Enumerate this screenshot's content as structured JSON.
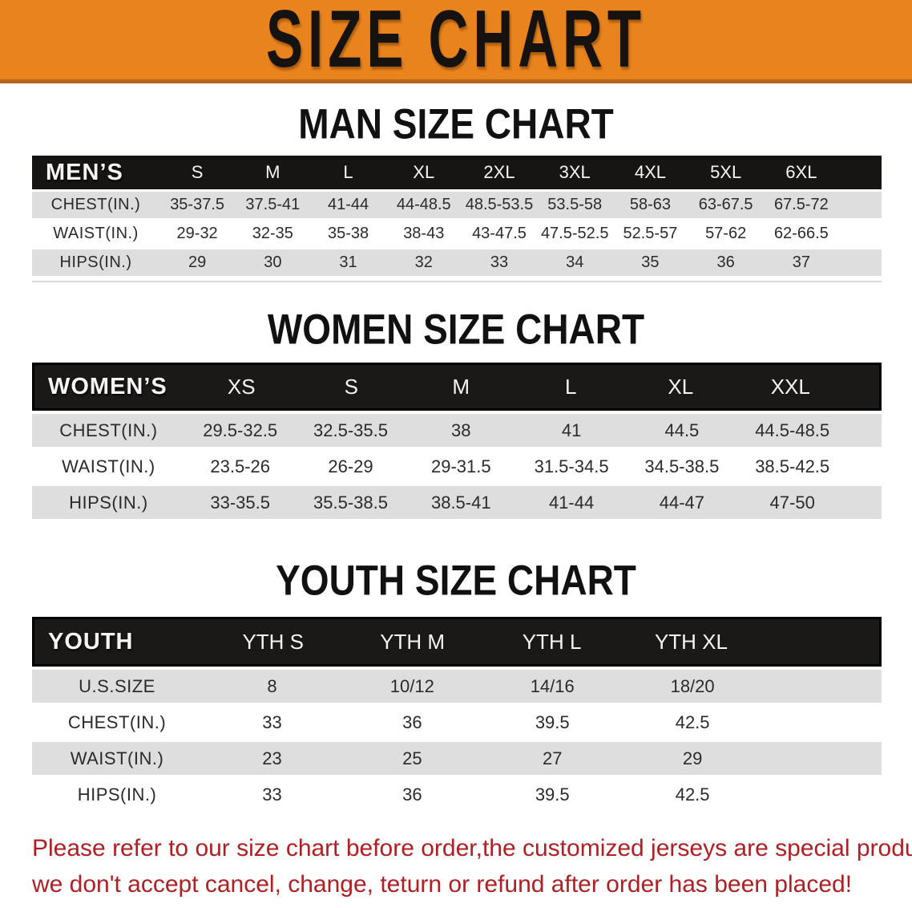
{
  "banner": {
    "title": "SIZE CHART"
  },
  "sections": [
    {
      "heading": "MAN SIZE CHART",
      "table": {
        "header_label": "MEN’S",
        "columns": [
          "S",
          "M",
          "L",
          "XL",
          "2XL",
          "3XL",
          "4XL",
          "5XL",
          "6XL"
        ],
        "rows": [
          {
            "label": "CHEST(IN.)",
            "values": [
              "35-37.5",
              "37.5-41",
              "41-44",
              "44-48.5",
              "48.5-53.5",
              "53.5-58",
              "58-63",
              "63-67.5",
              "67.5-72"
            ]
          },
          {
            "label": "WAIST(IN.)",
            "values": [
              "29-32",
              "32-35",
              "35-38",
              "38-43",
              "43-47.5",
              "47.5-52.5",
              "52.5-57",
              "57-62",
              "62-66.5"
            ]
          },
          {
            "label": "HIPS(IN.)",
            "values": [
              "29",
              "30",
              "31",
              "32",
              "33",
              "34",
              "35",
              "36",
              "37"
            ]
          }
        ]
      }
    },
    {
      "heading": "WOMEN SIZE CHART",
      "table": {
        "header_label": "WOMEN’S",
        "columns": [
          "XS",
          "S",
          "M",
          "L",
          "XL",
          "XXL"
        ],
        "rows": [
          {
            "label": "CHEST(IN.)",
            "values": [
              "29.5-32.5",
              "32.5-35.5",
              "38",
              "41",
              "44.5",
              "44.5-48.5"
            ]
          },
          {
            "label": "WAIST(IN.)",
            "values": [
              "23.5-26",
              "26-29",
              "29-31.5",
              "31.5-34.5",
              "34.5-38.5",
              "38.5-42.5"
            ]
          },
          {
            "label": "HIPS(IN.)",
            "values": [
              "33-35.5",
              "35.5-38.5",
              "38.5-41",
              "41-44",
              "44-47",
              "47-50"
            ]
          }
        ]
      }
    },
    {
      "heading": "YOUTH SIZE CHART",
      "table": {
        "header_label": "YOUTH",
        "columns": [
          "YTH S",
          "YTH M",
          "YTH L",
          "YTH XL"
        ],
        "rows": [
          {
            "label": "U.S.SIZE",
            "values": [
              "8",
              "10/12",
              "14/16",
              "18/20"
            ]
          },
          {
            "label": "CHEST(IN.)",
            "values": [
              "33",
              "36",
              "39.5",
              "42.5"
            ]
          },
          {
            "label": "WAIST(IN.)",
            "values": [
              "23",
              "25",
              "27",
              "29"
            ]
          },
          {
            "label": "HIPS(IN.)",
            "values": [
              "33",
              "36",
              "39.5",
              "42.5"
            ]
          }
        ]
      }
    }
  ],
  "disclaimer": {
    "line1": "Please refer to our size chart before order,the customized jerseys are special products,",
    "line2": "we don't accept cancel, change, teturn or refund after order has been placed!"
  },
  "colors": {
    "banner_orange": "#E8831D",
    "banner_border": "#B4661B",
    "table_header_black": "#171514",
    "row_gray": "#DEDEDE",
    "disclaimer_red": "#AE2024"
  }
}
